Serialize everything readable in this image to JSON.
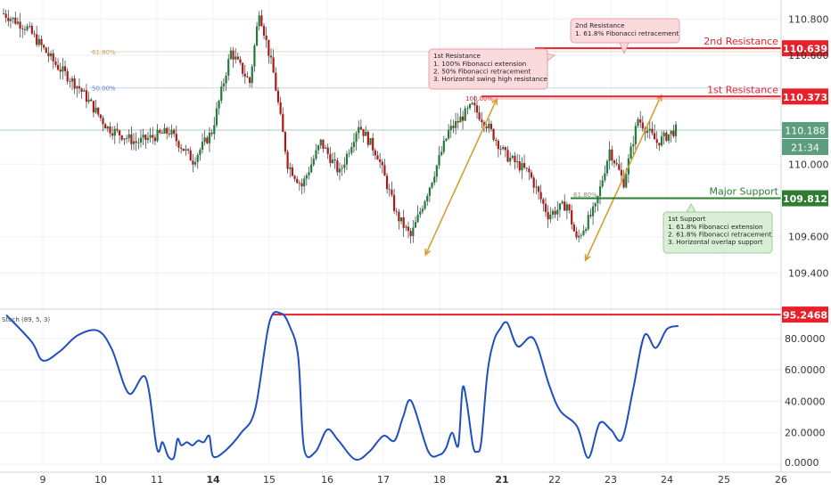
{
  "chart_data": [
    {
      "type": "candlestick",
      "y_axis": {
        "ylim": [
          109.235,
          110.905
        ],
        "ticks": [
          {
            "value": 110.8,
            "label": "110.800"
          },
          {
            "value": 110.6,
            "label": "110.600"
          },
          {
            "value": 110.0,
            "label": "110.000"
          },
          {
            "value": 109.6,
            "label": "109.600"
          },
          {
            "value": 109.4,
            "label": "109.400"
          }
        ]
      },
      "anchor_series": [
        {
          "i": 0,
          "v": 110.83
        },
        {
          "i": 10,
          "v": 110.75
        },
        {
          "i": 22,
          "v": 110.55
        },
        {
          "i": 32,
          "v": 110.42
        },
        {
          "i": 44,
          "v": 110.2
        },
        {
          "i": 56,
          "v": 110.12
        },
        {
          "i": 70,
          "v": 110.18
        },
        {
          "i": 80,
          "v": 110.02
        },
        {
          "i": 88,
          "v": 110.18
        },
        {
          "i": 96,
          "v": 110.62
        },
        {
          "i": 104,
          "v": 110.45
        },
        {
          "i": 108,
          "v": 110.85
        },
        {
          "i": 114,
          "v": 110.5
        },
        {
          "i": 120,
          "v": 110.0
        },
        {
          "i": 126,
          "v": 109.88
        },
        {
          "i": 134,
          "v": 110.12
        },
        {
          "i": 142,
          "v": 109.95
        },
        {
          "i": 150,
          "v": 110.22
        },
        {
          "i": 158,
          "v": 110.05
        },
        {
          "i": 166,
          "v": 109.72
        },
        {
          "i": 172,
          "v": 109.6
        },
        {
          "i": 180,
          "v": 109.88
        },
        {
          "i": 188,
          "v": 110.18
        },
        {
          "i": 198,
          "v": 110.32
        },
        {
          "i": 204,
          "v": 110.22
        },
        {
          "i": 212,
          "v": 110.05
        },
        {
          "i": 222,
          "v": 109.95
        },
        {
          "i": 230,
          "v": 109.72
        },
        {
          "i": 238,
          "v": 109.78
        },
        {
          "i": 242,
          "v": 109.58
        },
        {
          "i": 250,
          "v": 109.76
        },
        {
          "i": 256,
          "v": 110.08
        },
        {
          "i": 262,
          "v": 109.9
        },
        {
          "i": 268,
          "v": 110.25
        },
        {
          "i": 276,
          "v": 110.12
        },
        {
          "i": 284,
          "v": 110.19
        }
      ],
      "current_price": {
        "value": 110.188,
        "label": "110.188",
        "countdown": "21:34"
      },
      "levels": [
        {
          "name": "2nd Resistance",
          "value": 110.639,
          "label": "110.639",
          "color": "#e8202a"
        },
        {
          "name": "1st Resistance",
          "value": 110.373,
          "label": "110.373",
          "color": "#e8202a"
        },
        {
          "name": "Major Support",
          "value": 109.812,
          "label": "109.812",
          "color": "#2e7d32"
        }
      ],
      "fib_retracement": [
        {
          "label": "61.80%",
          "value": 110.62,
          "color": "#c8a060"
        },
        {
          "label": "50.00%",
          "value": 110.42,
          "color": "#5c80c0"
        },
        {
          "label": "100.00%",
          "value": 110.36,
          "color": "#e8202a"
        },
        {
          "label": "61.80%",
          "value": 109.83,
          "color": "#888888"
        }
      ],
      "fib_extension_legs": [
        {
          "from": {
            "day": 17.75,
            "price": 109.5
          },
          "to": {
            "day": 20.75,
            "price": 110.36
          }
        },
        {
          "from": {
            "day": 22.55,
            "price": 109.47
          },
          "to": {
            "day": 23.9,
            "price": 110.38
          }
        }
      ],
      "annotations": [
        {
          "kind": "resistance",
          "title": "2nd Resistance",
          "lines": [
            "1. 61.8% Fibonacci retracement"
          ]
        },
        {
          "kind": "resistance",
          "title": "1st Resistance",
          "lines": [
            "1. 100% Fibonacci extension",
            "2. 50% Fibonacci retracement",
            "3. Horizontal swing high resistance"
          ]
        },
        {
          "kind": "support",
          "title": "1st Support",
          "lines": [
            "1. 61.8% Fibonacci extension",
            "2. 61.8% Fibonacci retracement",
            "3. Horizontal overlap support"
          ]
        }
      ]
    },
    {
      "type": "line",
      "name": "Stoch (89, 5, 3)",
      "ylim": [
        0,
        97
      ],
      "y_axis": {
        "ticks": [
          {
            "value": 80,
            "label": "80.0000"
          },
          {
            "value": 60,
            "label": "60.0000"
          },
          {
            "value": 40,
            "label": "40.0000"
          },
          {
            "value": 20,
            "label": "20.0000"
          },
          {
            "value": 0,
            "label": "0.0000"
          }
        ]
      },
      "level": {
        "value": 95.2468,
        "label": "95.2468",
        "color": "#e8202a"
      },
      "x": [
        8.35,
        8.8,
        9.0,
        9.3,
        9.6,
        9.95,
        10.2,
        10.5,
        10.8,
        11.0,
        11.3,
        11.6,
        11.9,
        12.1,
        12.3,
        12.6,
        12.9,
        13.2,
        13.5,
        13.8,
        14.0,
        14.2,
        14.5,
        14.75,
        15.0,
        15.2,
        15.35,
        15.5,
        15.6,
        15.8,
        16.0,
        16.2,
        16.5,
        16.75,
        17.0,
        17.2,
        17.35,
        17.5,
        17.8,
        18.0,
        18.3,
        18.6,
        18.9,
        19.1,
        19.3,
        19.6,
        19.8,
        20.0,
        20.3,
        20.6,
        20.9,
        21.1,
        21.3,
        21.6,
        21.9,
        22.1,
        22.4,
        22.6,
        22.8,
        23.0,
        23.2,
        23.4,
        23.6,
        23.8,
        24.0,
        24.2
      ],
      "values": [
        95,
        78,
        66,
        72,
        82,
        85,
        73,
        45,
        55,
        10,
        14,
        5,
        4,
        16,
        12,
        14,
        12,
        15,
        14,
        18,
        5,
        8,
        20,
        35,
        90,
        96,
        88,
        68,
        10,
        8,
        22,
        15,
        3,
        8,
        18,
        15,
        30,
        40,
        8,
        6,
        10,
        20,
        12,
        48,
        40,
        12,
        8,
        14,
        58,
        78,
        86,
        90,
        75,
        80,
        50,
        34,
        24,
        4,
        26,
        22,
        16,
        48,
        82,
        74,
        86,
        88
      ]
    }
  ],
  "x_axis": {
    "ticks": [
      {
        "day": 9,
        "label": "9",
        "bold": false
      },
      {
        "day": 10,
        "label": "10",
        "bold": false
      },
      {
        "day": 11,
        "label": "11",
        "bold": false
      },
      {
        "day": 14,
        "label": "14",
        "bold": true
      },
      {
        "day": 15,
        "label": "15",
        "bold": false
      },
      {
        "day": 16,
        "label": "16",
        "bold": false
      },
      {
        "day": 17,
        "label": "17",
        "bold": false
      },
      {
        "day": 18,
        "label": "18",
        "bold": false
      },
      {
        "day": 21,
        "label": "21",
        "bold": true
      },
      {
        "day": 22,
        "label": "22",
        "bold": false
      },
      {
        "day": 23,
        "label": "23",
        "bold": false
      },
      {
        "day": 24,
        "label": "24",
        "bold": false
      },
      {
        "day": 25,
        "label": "25",
        "bold": false
      },
      {
        "day": 26,
        "label": "26",
        "bold": false
      }
    ]
  },
  "colors": {
    "bull": "#1e7d3a",
    "bear": "#b01818",
    "resistance": "#e8202a",
    "support": "#2e7d32",
    "stoch": "#1f4fbf",
    "fib_leg": "#d4a030",
    "price_tag": "#5b9e7e",
    "grid": "#eef0f3",
    "axis_text": "#333333"
  }
}
